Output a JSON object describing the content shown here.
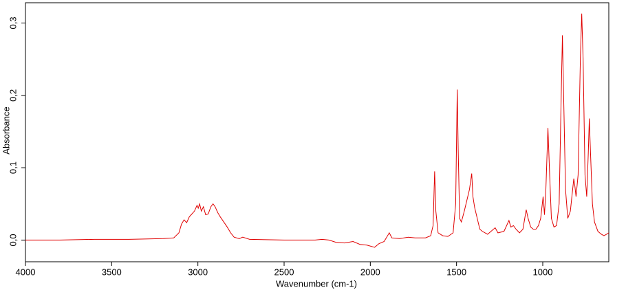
{
  "chart_data": {
    "type": "line",
    "x_label": "Wavenumber (cm-1)",
    "y_label": "Absorbance",
    "color": "#e00000",
    "xlim": [
      4000,
      617
    ],
    "ylim": [
      -0.03,
      0.328
    ],
    "xticks": [
      4000,
      3500,
      3000,
      2500,
      2000,
      1500,
      1000
    ],
    "yticks": [
      {
        "value": 0,
        "label": "0,0"
      },
      {
        "value": 0.1,
        "label": "0,1"
      },
      {
        "value": 0.2,
        "label": "0,2"
      },
      {
        "value": 0.3,
        "label": "0,3"
      }
    ],
    "x": [
      4000,
      3800,
      3600,
      3400,
      3200,
      3140,
      3110,
      3095,
      3080,
      3065,
      3050,
      3035,
      3020,
      3005,
      2998,
      2990,
      2980,
      2968,
      2955,
      2940,
      2925,
      2912,
      2900,
      2885,
      2870,
      2850,
      2830,
      2810,
      2790,
      2760,
      2740,
      2700,
      2500,
      2320,
      2280,
      2240,
      2200,
      2150,
      2100,
      2060,
      2020,
      1975,
      1950,
      1920,
      1890,
      1875,
      1830,
      1780,
      1740,
      1680,
      1650,
      1636,
      1627,
      1620,
      1607,
      1580,
      1550,
      1520,
      1505,
      1496,
      1490,
      1482,
      1472,
      1455,
      1440,
      1425,
      1412,
      1405,
      1395,
      1380,
      1365,
      1350,
      1320,
      1276,
      1260,
      1225,
      1196,
      1185,
      1170,
      1155,
      1135,
      1115,
      1096,
      1085,
      1070,
      1055,
      1040,
      1025,
      1012,
      998,
      990,
      982,
      970,
      960,
      950,
      935,
      920,
      905,
      893,
      886,
      879,
      868,
      855,
      840,
      820,
      814,
      807,
      795,
      782,
      774,
      766,
      755,
      745,
      736,
      730,
      723,
      712,
      700,
      680,
      660,
      645,
      630,
      617
    ],
    "values": [
      0,
      0,
      0.001,
      0.001,
      0.002,
      0.003,
      0.01,
      0.022,
      0.028,
      0.024,
      0.032,
      0.036,
      0.04,
      0.048,
      0.044,
      0.05,
      0.04,
      0.046,
      0.035,
      0.036,
      0.046,
      0.05,
      0.046,
      0.038,
      0.032,
      0.025,
      0.018,
      0.01,
      0.004,
      0.002,
      0.004,
      0.001,
      0,
      0,
      0.001,
      0,
      -0.003,
      -0.004,
      -0.002,
      -0.006,
      -0.007,
      -0.01,
      -0.005,
      -0.002,
      0.01,
      0.003,
      0.002,
      0.004,
      0.003,
      0.003,
      0.006,
      0.02,
      0.095,
      0.04,
      0.01,
      0.006,
      0.005,
      0.01,
      0.05,
      0.208,
      0.12,
      0.03,
      0.025,
      0.04,
      0.055,
      0.07,
      0.092,
      0.06,
      0.045,
      0.03,
      0.015,
      0.012,
      0.008,
      0.017,
      0.01,
      0.012,
      0.027,
      0.018,
      0.02,
      0.015,
      0.01,
      0.015,
      0.042,
      0.03,
      0.018,
      0.015,
      0.015,
      0.02,
      0.03,
      0.06,
      0.035,
      0.07,
      0.155,
      0.09,
      0.03,
      0.018,
      0.02,
      0.05,
      0.2,
      0.283,
      0.2,
      0.07,
      0.03,
      0.04,
      0.085,
      0.075,
      0.06,
      0.09,
      0.25,
      0.313,
      0.25,
      0.09,
      0.06,
      0.12,
      0.168,
      0.12,
      0.05,
      0.025,
      0.012,
      0.008,
      0.006,
      0.008,
      0.01
    ]
  }
}
